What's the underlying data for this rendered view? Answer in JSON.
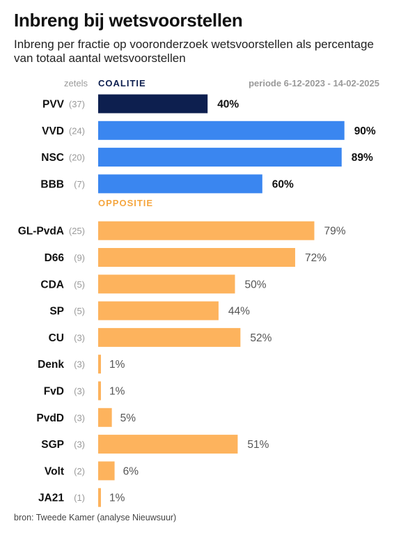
{
  "title": "Inbreng bij wetsvoorstellen",
  "subtitle": "Inbreng per fractie op vooronderzoek wetsvoorstellen als percentage van totaal aantal wetsvoorstellen",
  "source": "bron: Tweede Kamer (analyse Nieuwsuur)",
  "chart_data": {
    "type": "bar",
    "orientation": "horizontal",
    "seats_header": "zetels",
    "period": "periode 6-12-2023 - 14-02-2025",
    "value_suffix": "%",
    "xlim": [
      0,
      100
    ],
    "grid": false,
    "groups": [
      {
        "name": "COALITIE",
        "color": "#0d1f4f",
        "header_color": "#0d1f4f",
        "label_color": "#111111",
        "label_bold": true,
        "items": [
          {
            "party": "PVV",
            "seats": "(37)",
            "value": 40,
            "color": "#0d1f4f"
          },
          {
            "party": "VVD",
            "seats": "(24)",
            "value": 90,
            "color": "#3a86f0"
          },
          {
            "party": "NSC",
            "seats": "(20)",
            "value": 89,
            "color": "#3a86f0"
          },
          {
            "party": "BBB",
            "seats": "(7)",
            "value": 60,
            "color": "#3a86f0"
          }
        ]
      },
      {
        "name": "OPPOSITIE",
        "color": "#fdb35d",
        "header_color": "#f5a63f",
        "label_color": "#555555",
        "label_bold": false,
        "items": [
          {
            "party": "GL-PvdA",
            "seats": "(25)",
            "value": 79
          },
          {
            "party": "D66",
            "seats": "(9)",
            "value": 72
          },
          {
            "party": "CDA",
            "seats": "(5)",
            "value": 50
          },
          {
            "party": "SP",
            "seats": "(5)",
            "value": 44
          },
          {
            "party": "CU",
            "seats": "(3)",
            "value": 52
          },
          {
            "party": "Denk",
            "seats": "(3)",
            "value": 1
          },
          {
            "party": "FvD",
            "seats": "(3)",
            "value": 1
          },
          {
            "party": "PvdD",
            "seats": "(3)",
            "value": 5
          },
          {
            "party": "SGP",
            "seats": "(3)",
            "value": 51
          },
          {
            "party": "Volt",
            "seats": "(2)",
            "value": 6
          },
          {
            "party": "JA21",
            "seats": "(1)",
            "value": 1
          }
        ]
      }
    ]
  }
}
